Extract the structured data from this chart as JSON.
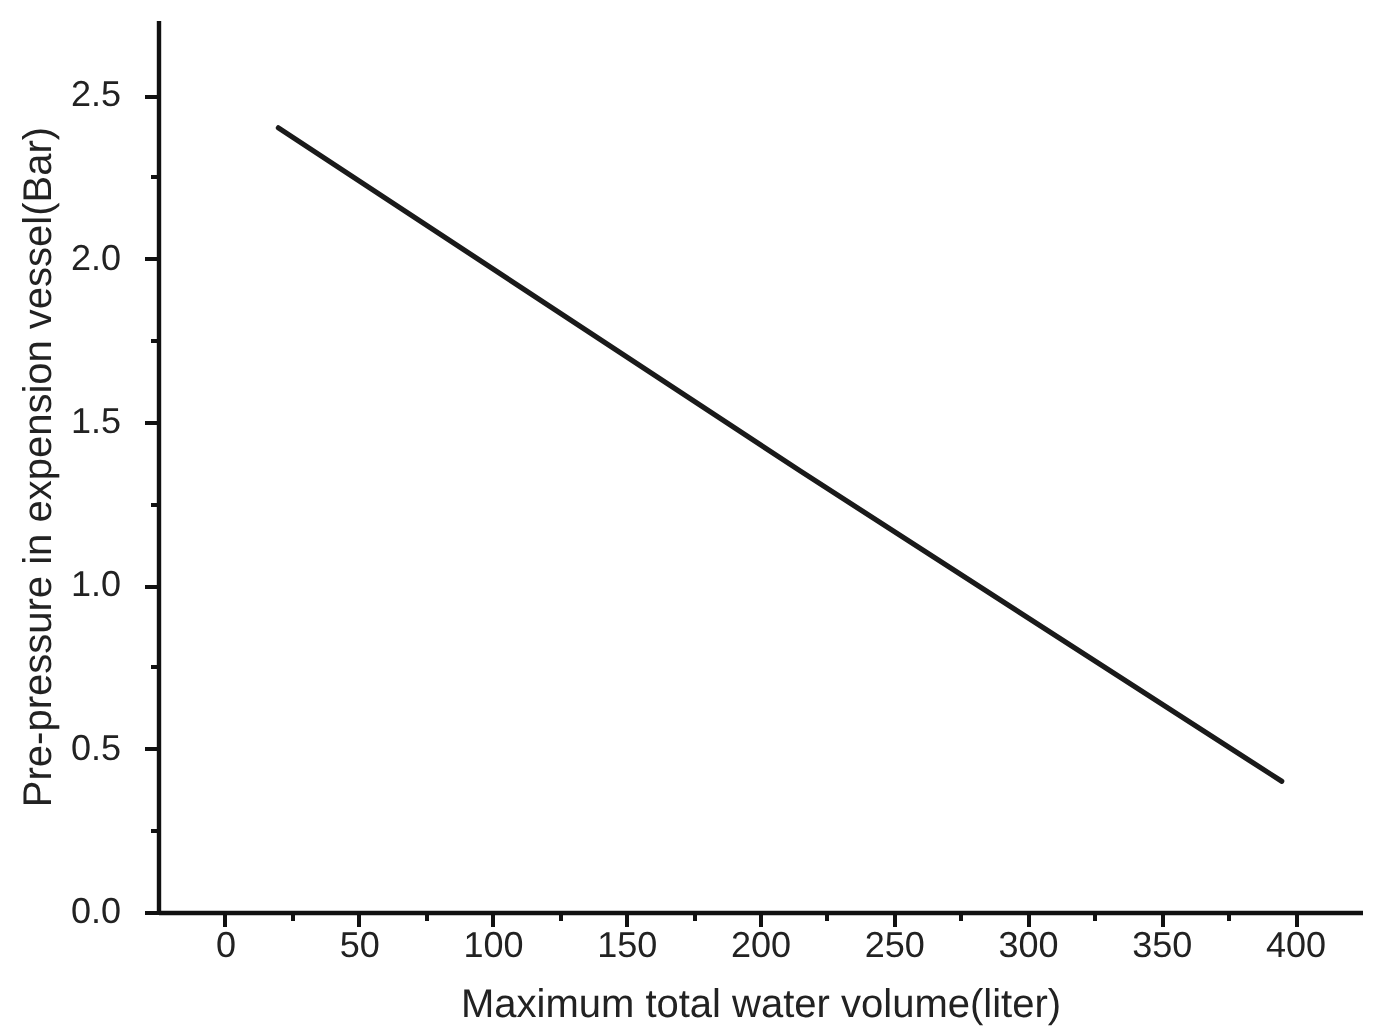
{
  "chart_data": {
    "type": "line",
    "xlabel": "Maximum total water volume(liter)",
    "ylabel": "Pre-pressure in expension vessel(Bar)",
    "x": [
      20,
      215,
      395
    ],
    "values": [
      2.4,
      1.35,
      0.4
    ],
    "color": "#1a1a1a",
    "xlim": [
      -25,
      425
    ],
    "ylim": [
      0,
      2.73
    ],
    "xticks": [
      0,
      {
        "value": 25,
        "label": null
      },
      50,
      {
        "value": 75,
        "label": null
      },
      100,
      {
        "value": 125,
        "label": null
      },
      150,
      {
        "value": 175,
        "label": null
      },
      200,
      {
        "value": 225,
        "label": null
      },
      250,
      {
        "value": 275,
        "label": null
      },
      300,
      {
        "value": 325,
        "label": null
      },
      350,
      {
        "value": 375,
        "label": null
      },
      400
    ],
    "yticks": [
      {
        "value": 0,
        "label": "0.0"
      },
      {
        "value": 0.25,
        "label": null
      },
      {
        "value": 0.5,
        "label": "0.5"
      },
      {
        "value": 0.75,
        "label": null
      },
      {
        "value": 1,
        "label": "1.0"
      },
      {
        "value": 1.25,
        "label": null
      },
      {
        "value": 1.5,
        "label": "1.5"
      },
      {
        "value": 1.75,
        "label": null
      },
      {
        "value": 2,
        "label": "2.0"
      },
      {
        "value": 2.25,
        "label": null
      },
      {
        "value": 2.5,
        "label": "2.5"
      }
    ],
    "grid": false,
    "marker": "none",
    "line_style": "solid"
  }
}
